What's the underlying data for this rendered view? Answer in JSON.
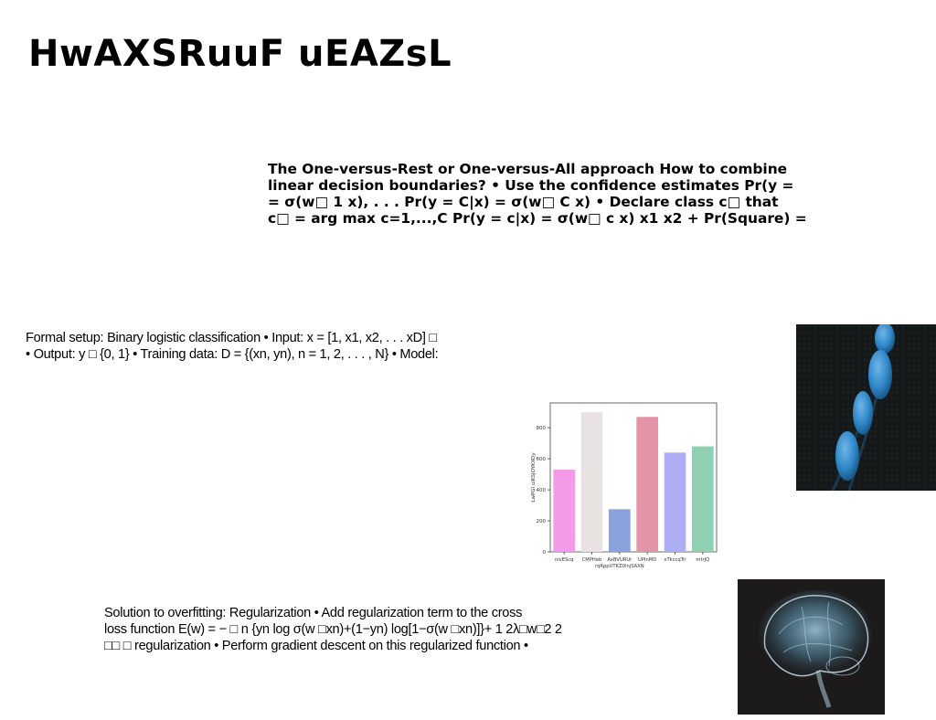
{
  "slide": {
    "title": "HwAXSRuuF uEAZsL",
    "bold_block_lines": [
      "The One-versus-Rest or One-versus-All approach How to combine",
      "linear decision boundaries? • Use the confidence estimates Pr(y =",
      "= σ(w□ 1 x), . . . Pr(y = C|x) = σ(w□ C x) • Declare class c□ that",
      "c□ = arg max c=1,...,C Pr(y = c|x) = σ(w□ c x) x1 x2 + Pr(Square) ="
    ],
    "formal_block_lines": [
      "Formal setup: Binary logistic classification • Input: x = [1, x1, x2, . . . xD] □",
      "• Output: y □ {0, 1} • Training data: D = {(xn, yn), n = 1, 2, . . . , N} • Model:"
    ],
    "solution_block_lines": [
      "Solution to overfitting: Regularization • Add regularization term to the cross",
      "loss function E(w) = − □ n {yn log σ(w □xn)+(1−yn) log[1−σ(w □xn)]}+ 1 2λ□w□2 2",
      "□□ □ regularization • Perform gradient descent on this regularized function •"
    ]
  },
  "chart_data": {
    "type": "bar",
    "categories": [
      "nlvEScq",
      "CMPHeb",
      "AxBVURUr\nrqRppUTKZlXnjSAXN",
      "UPInMD",
      "xTkccqTri",
      "mtrJQ"
    ],
    "category_lines": [
      [
        "nlvEScq"
      ],
      [
        "CMPHeb"
      ],
      [
        "AxBVURUr",
        "rqRppUTKZlXnjSAXN"
      ],
      [
        "UPInMD"
      ],
      [
        "xTkccqTri"
      ],
      [
        "mtrJQ"
      ]
    ],
    "values": [
      530,
      900,
      275,
      870,
      640,
      680
    ],
    "colors": [
      "#f49ae8",
      "#e8e2e2",
      "#8aa2dc",
      "#e394a6",
      "#aeaef4",
      "#8fd0b2"
    ],
    "ylabel": "LwPGI uiKSjOYKXOy",
    "ylim": [
      0,
      960
    ],
    "yticks": [
      0,
      200,
      400,
      600,
      800
    ],
    "grid": false
  }
}
